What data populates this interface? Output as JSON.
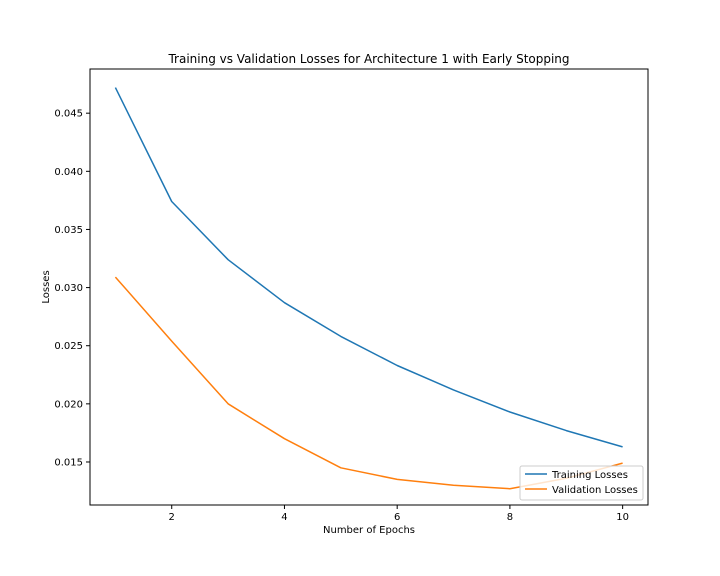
{
  "chart_data": {
    "type": "line",
    "title": "Training vs Validation Losses for Architecture 1 with Early Stopping",
    "xlabel": "Number of Epochs",
    "ylabel": "Losses",
    "xlim": [
      0.55,
      10.45
    ],
    "ylim": [
      0.0113,
      0.0488
    ],
    "xticks": [
      2,
      4,
      6,
      8,
      10
    ],
    "yticks": [
      0.015,
      0.02,
      0.025,
      0.03,
      0.035,
      0.04,
      0.045
    ],
    "xtick_labels": [
      "2",
      "4",
      "6",
      "8",
      "10"
    ],
    "ytick_labels": [
      "0.015",
      "0.020",
      "0.025",
      "0.030",
      "0.035",
      "0.040",
      "0.045"
    ],
    "grid": false,
    "legend_position": "lower-right",
    "x": [
      1,
      2,
      3,
      4,
      5,
      6,
      7,
      8,
      9,
      10
    ],
    "series": [
      {
        "name": "Training Losses",
        "color": "#1f77b4",
        "values": [
          0.0472,
          0.0374,
          0.0324,
          0.0287,
          0.0258,
          0.0233,
          0.0212,
          0.0193,
          0.0177,
          0.0163
        ]
      },
      {
        "name": "Validation Losses",
        "color": "#ff7f0e",
        "values": [
          0.0309,
          0.0254,
          0.02,
          0.017,
          0.0145,
          0.0135,
          0.013,
          0.0127,
          0.0136,
          0.0149
        ]
      }
    ]
  }
}
